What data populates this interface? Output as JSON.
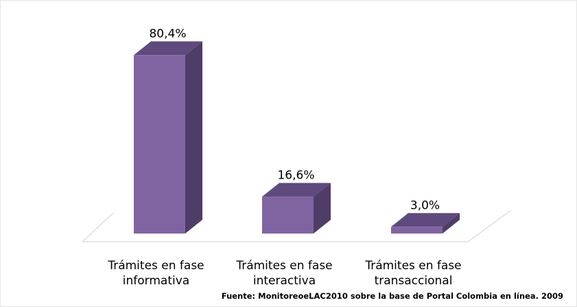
{
  "chart_data": {
    "type": "bar3d",
    "categories": [
      "Trámites en fase informativa",
      "Trámites en fase interactiva",
      "Trámites en fase transaccional"
    ],
    "values": [
      80.4,
      16.6,
      3.0
    ],
    "value_labels": [
      "80,4%",
      "16,6%",
      "3,0%"
    ],
    "color": "#8064a2",
    "source": "Fuente: MonitoreoeLAC2010 sobre la base de Portal Colombia en línea. 2009"
  }
}
